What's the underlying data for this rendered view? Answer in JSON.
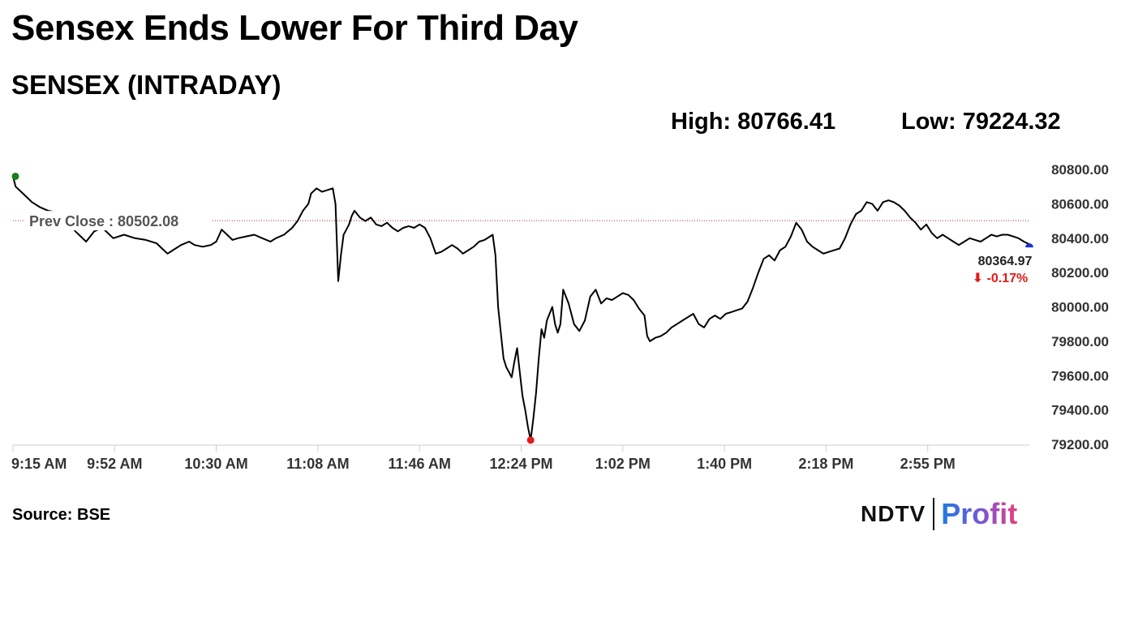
{
  "headline": "Sensex Ends Lower For Third Day",
  "stats": {
    "high": "High: 80766.41",
    "low": "Low: 79224.32"
  },
  "source": "Source: BSE",
  "logo": {
    "primary": "NDTV",
    "secondary": "Profit"
  },
  "colors": {
    "line": "#000000",
    "prev_close_line": "#c62828",
    "open_marker": "#1a7f1a",
    "low_marker": "#e31b1b",
    "last_marker": "#1f2fd6",
    "change_negative": "#e31b1b",
    "axis": "#cccccc"
  },
  "chart_data": {
    "type": "line",
    "title": "SENSEX (INTRADAY)",
    "xlabel": "",
    "ylabel": "",
    "ylim": [
      79200,
      80800
    ],
    "yticks": [
      "80800.00",
      "80600.00",
      "80400.00",
      "80200.00",
      "80000.00",
      "79800.00",
      "79600.00",
      "79400.00",
      "79200.00"
    ],
    "xticks": [
      "9:15 AM",
      "9:52 AM",
      "10:30 AM",
      "11:08 AM",
      "11:46 AM",
      "12:24 PM",
      "1:02 PM",
      "1:40 PM",
      "2:18 PM",
      "2:55 PM"
    ],
    "session": {
      "start": "9:15",
      "end": "15:30"
    },
    "prev_close": {
      "label": "Prev Close : 80502.08",
      "value": 80502.08
    },
    "last": {
      "time": "15:30",
      "value": 80364.97,
      "label": "80364.97",
      "change_label": "⬇ -0.17%"
    },
    "day_low": {
      "time": "12:26",
      "value": 79224.32
    },
    "grid": false,
    "series": [
      {
        "points": [
          [
            "9:15",
            80760
          ],
          [
            "9:16",
            80700
          ],
          [
            "9:18",
            80670
          ],
          [
            "9:20",
            80640
          ],
          [
            "9:22",
            80610
          ],
          [
            "9:25",
            80580
          ],
          [
            "9:28",
            80560
          ],
          [
            "9:31",
            80550
          ],
          [
            "9:34",
            80520
          ],
          [
            "9:36",
            80480
          ],
          [
            "9:38",
            80440
          ],
          [
            "9:40",
            80410
          ],
          [
            "9:42",
            80380
          ],
          [
            "9:45",
            80440
          ],
          [
            "9:48",
            80460
          ],
          [
            "9:50",
            80430
          ],
          [
            "9:52",
            80400
          ],
          [
            "9:56",
            80420
          ],
          [
            "10:00",
            80400
          ],
          [
            "10:04",
            80390
          ],
          [
            "10:08",
            80370
          ],
          [
            "10:10",
            80340
          ],
          [
            "10:12",
            80310
          ],
          [
            "10:14",
            80330
          ],
          [
            "10:17",
            80360
          ],
          [
            "10:20",
            80380
          ],
          [
            "10:22",
            80360
          ],
          [
            "10:25",
            80350
          ],
          [
            "10:28",
            80360
          ],
          [
            "10:30",
            80380
          ],
          [
            "10:32",
            80450
          ],
          [
            "10:34",
            80420
          ],
          [
            "10:36",
            80390
          ],
          [
            "10:38",
            80400
          ],
          [
            "10:41",
            80410
          ],
          [
            "10:44",
            80420
          ],
          [
            "10:47",
            80400
          ],
          [
            "10:50",
            80380
          ],
          [
            "10:52",
            80400
          ],
          [
            "10:55",
            80420
          ],
          [
            "10:58",
            80460
          ],
          [
            "11:00",
            80500
          ],
          [
            "11:02",
            80560
          ],
          [
            "11:04",
            80600
          ],
          [
            "11:05",
            80660
          ],
          [
            "11:07",
            80690
          ],
          [
            "11:09",
            80670
          ],
          [
            "11:11",
            80680
          ],
          [
            "11:13",
            80690
          ],
          [
            "11:14",
            80600
          ],
          [
            "11:15",
            80150
          ],
          [
            "11:16",
            80300
          ],
          [
            "11:17",
            80420
          ],
          [
            "11:18",
            80450
          ],
          [
            "11:19",
            80480
          ],
          [
            "11:20",
            80530
          ],
          [
            "11:21",
            80560
          ],
          [
            "11:23",
            80520
          ],
          [
            "11:25",
            80500
          ],
          [
            "11:27",
            80520
          ],
          [
            "11:29",
            80480
          ],
          [
            "11:31",
            80470
          ],
          [
            "11:33",
            80490
          ],
          [
            "11:35",
            80460
          ],
          [
            "11:37",
            80440
          ],
          [
            "11:39",
            80460
          ],
          [
            "11:41",
            80470
          ],
          [
            "11:43",
            80460
          ],
          [
            "11:45",
            80480
          ],
          [
            "11:47",
            80460
          ],
          [
            "11:49",
            80400
          ],
          [
            "11:51",
            80310
          ],
          [
            "11:53",
            80320
          ],
          [
            "11:55",
            80340
          ],
          [
            "11:57",
            80360
          ],
          [
            "11:59",
            80340
          ],
          [
            "12:01",
            80310
          ],
          [
            "12:03",
            80330
          ],
          [
            "12:05",
            80350
          ],
          [
            "12:07",
            80380
          ],
          [
            "12:09",
            80390
          ],
          [
            "12:11",
            80410
          ],
          [
            "12:12",
            80420
          ],
          [
            "12:13",
            80300
          ],
          [
            "12:14",
            80000
          ],
          [
            "12:15",
            79850
          ],
          [
            "12:16",
            79700
          ],
          [
            "12:17",
            79650
          ],
          [
            "12:18",
            79620
          ],
          [
            "12:19",
            79590
          ],
          [
            "12:20",
            79680
          ],
          [
            "12:21",
            79760
          ],
          [
            "12:22",
            79620
          ],
          [
            "12:23",
            79480
          ],
          [
            "12:24",
            79400
          ],
          [
            "12:25",
            79300
          ],
          [
            "12:26",
            79224
          ],
          [
            "12:27",
            79350
          ],
          [
            "12:28",
            79500
          ],
          [
            "12:29",
            79700
          ],
          [
            "12:30",
            79870
          ],
          [
            "12:31",
            79820
          ],
          [
            "12:32",
            79920
          ],
          [
            "12:34",
            80000
          ],
          [
            "12:35",
            79900
          ],
          [
            "12:36",
            79850
          ],
          [
            "12:37",
            79900
          ],
          [
            "12:38",
            80100
          ],
          [
            "12:40",
            80020
          ],
          [
            "12:42",
            79900
          ],
          [
            "12:44",
            79860
          ],
          [
            "12:46",
            79920
          ],
          [
            "12:48",
            80060
          ],
          [
            "12:50",
            80100
          ],
          [
            "12:52",
            80020
          ],
          [
            "12:54",
            80050
          ],
          [
            "12:56",
            80040
          ],
          [
            "12:58",
            80060
          ],
          [
            "13:00",
            80080
          ],
          [
            "13:02",
            80070
          ],
          [
            "13:04",
            80040
          ],
          [
            "13:06",
            79990
          ],
          [
            "13:08",
            79950
          ],
          [
            "13:09",
            79830
          ],
          [
            "13:10",
            79800
          ],
          [
            "13:12",
            79820
          ],
          [
            "13:14",
            79830
          ],
          [
            "13:16",
            79850
          ],
          [
            "13:18",
            79880
          ],
          [
            "13:20",
            79900
          ],
          [
            "13:22",
            79920
          ],
          [
            "13:24",
            79940
          ],
          [
            "13:26",
            79960
          ],
          [
            "13:28",
            79900
          ],
          [
            "13:30",
            79880
          ],
          [
            "13:32",
            79930
          ],
          [
            "13:34",
            79950
          ],
          [
            "13:36",
            79930
          ],
          [
            "13:38",
            79960
          ],
          [
            "13:40",
            79970
          ],
          [
            "13:42",
            79980
          ],
          [
            "13:44",
            79990
          ],
          [
            "13:46",
            80030
          ],
          [
            "13:48",
            80110
          ],
          [
            "13:50",
            80200
          ],
          [
            "13:52",
            80280
          ],
          [
            "13:54",
            80300
          ],
          [
            "13:56",
            80270
          ],
          [
            "13:58",
            80330
          ],
          [
            "14:00",
            80350
          ],
          [
            "14:02",
            80410
          ],
          [
            "14:04",
            80490
          ],
          [
            "14:06",
            80450
          ],
          [
            "14:08",
            80380
          ],
          [
            "14:10",
            80350
          ],
          [
            "14:12",
            80330
          ],
          [
            "14:14",
            80310
          ],
          [
            "14:16",
            80320
          ],
          [
            "14:18",
            80330
          ],
          [
            "14:20",
            80340
          ],
          [
            "14:22",
            80400
          ],
          [
            "14:24",
            80480
          ],
          [
            "14:26",
            80540
          ],
          [
            "14:28",
            80560
          ],
          [
            "14:30",
            80610
          ],
          [
            "14:32",
            80600
          ],
          [
            "14:34",
            80560
          ],
          [
            "14:36",
            80610
          ],
          [
            "14:38",
            80620
          ],
          [
            "14:40",
            80610
          ],
          [
            "14:42",
            80590
          ],
          [
            "14:44",
            80560
          ],
          [
            "14:46",
            80520
          ],
          [
            "14:48",
            80490
          ],
          [
            "14:50",
            80450
          ],
          [
            "14:52",
            80480
          ],
          [
            "14:54",
            80430
          ],
          [
            "14:56",
            80400
          ],
          [
            "14:58",
            80420
          ],
          [
            "15:00",
            80400
          ],
          [
            "15:02",
            80380
          ],
          [
            "15:04",
            80360
          ],
          [
            "15:06",
            80380
          ],
          [
            "15:08",
            80400
          ],
          [
            "15:10",
            80390
          ],
          [
            "15:12",
            80380
          ],
          [
            "15:14",
            80400
          ],
          [
            "15:16",
            80420
          ],
          [
            "15:18",
            80410
          ],
          [
            "15:20",
            80420
          ],
          [
            "15:22",
            80420
          ],
          [
            "15:24",
            80410
          ],
          [
            "15:26",
            80400
          ],
          [
            "15:28",
            80380
          ],
          [
            "15:30",
            80364.97
          ]
        ]
      }
    ]
  }
}
